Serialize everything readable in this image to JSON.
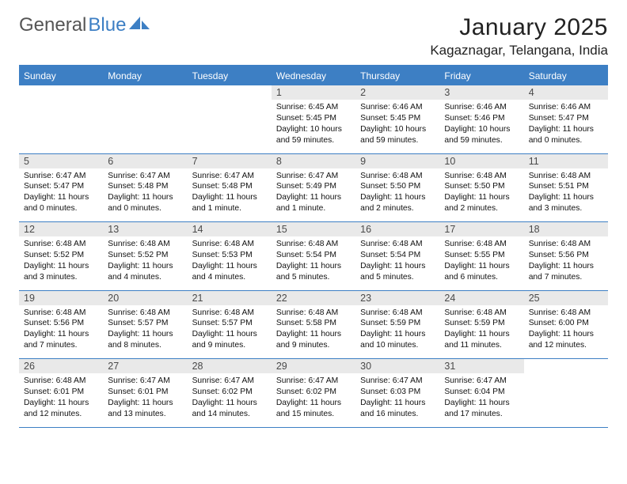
{
  "brand": {
    "part1": "General",
    "part2": "Blue"
  },
  "title": "January 2025",
  "location": "Kagaznagar, Telangana, India",
  "weekday_headers": [
    "Sunday",
    "Monday",
    "Tuesday",
    "Wednesday",
    "Thursday",
    "Friday",
    "Saturday"
  ],
  "header_bg": "#3d7fc4",
  "header_fg": "#ffffff",
  "daynum_bg": "#e9e9e9",
  "border_color": "#3d7fc4",
  "weeks": [
    {
      "days": [
        {
          "num": "",
          "lines": []
        },
        {
          "num": "",
          "lines": []
        },
        {
          "num": "",
          "lines": []
        },
        {
          "num": "1",
          "lines": [
            "Sunrise: 6:45 AM",
            "Sunset: 5:45 PM",
            "Daylight: 10 hours and 59 minutes."
          ]
        },
        {
          "num": "2",
          "lines": [
            "Sunrise: 6:46 AM",
            "Sunset: 5:45 PM",
            "Daylight: 10 hours and 59 minutes."
          ]
        },
        {
          "num": "3",
          "lines": [
            "Sunrise: 6:46 AM",
            "Sunset: 5:46 PM",
            "Daylight: 10 hours and 59 minutes."
          ]
        },
        {
          "num": "4",
          "lines": [
            "Sunrise: 6:46 AM",
            "Sunset: 5:47 PM",
            "Daylight: 11 hours and 0 minutes."
          ]
        }
      ]
    },
    {
      "days": [
        {
          "num": "5",
          "lines": [
            "Sunrise: 6:47 AM",
            "Sunset: 5:47 PM",
            "Daylight: 11 hours and 0 minutes."
          ]
        },
        {
          "num": "6",
          "lines": [
            "Sunrise: 6:47 AM",
            "Sunset: 5:48 PM",
            "Daylight: 11 hours and 0 minutes."
          ]
        },
        {
          "num": "7",
          "lines": [
            "Sunrise: 6:47 AM",
            "Sunset: 5:48 PM",
            "Daylight: 11 hours and 1 minute."
          ]
        },
        {
          "num": "8",
          "lines": [
            "Sunrise: 6:47 AM",
            "Sunset: 5:49 PM",
            "Daylight: 11 hours and 1 minute."
          ]
        },
        {
          "num": "9",
          "lines": [
            "Sunrise: 6:48 AM",
            "Sunset: 5:50 PM",
            "Daylight: 11 hours and 2 minutes."
          ]
        },
        {
          "num": "10",
          "lines": [
            "Sunrise: 6:48 AM",
            "Sunset: 5:50 PM",
            "Daylight: 11 hours and 2 minutes."
          ]
        },
        {
          "num": "11",
          "lines": [
            "Sunrise: 6:48 AM",
            "Sunset: 5:51 PM",
            "Daylight: 11 hours and 3 minutes."
          ]
        }
      ]
    },
    {
      "days": [
        {
          "num": "12",
          "lines": [
            "Sunrise: 6:48 AM",
            "Sunset: 5:52 PM",
            "Daylight: 11 hours and 3 minutes."
          ]
        },
        {
          "num": "13",
          "lines": [
            "Sunrise: 6:48 AM",
            "Sunset: 5:52 PM",
            "Daylight: 11 hours and 4 minutes."
          ]
        },
        {
          "num": "14",
          "lines": [
            "Sunrise: 6:48 AM",
            "Sunset: 5:53 PM",
            "Daylight: 11 hours and 4 minutes."
          ]
        },
        {
          "num": "15",
          "lines": [
            "Sunrise: 6:48 AM",
            "Sunset: 5:54 PM",
            "Daylight: 11 hours and 5 minutes."
          ]
        },
        {
          "num": "16",
          "lines": [
            "Sunrise: 6:48 AM",
            "Sunset: 5:54 PM",
            "Daylight: 11 hours and 5 minutes."
          ]
        },
        {
          "num": "17",
          "lines": [
            "Sunrise: 6:48 AM",
            "Sunset: 5:55 PM",
            "Daylight: 11 hours and 6 minutes."
          ]
        },
        {
          "num": "18",
          "lines": [
            "Sunrise: 6:48 AM",
            "Sunset: 5:56 PM",
            "Daylight: 11 hours and 7 minutes."
          ]
        }
      ]
    },
    {
      "days": [
        {
          "num": "19",
          "lines": [
            "Sunrise: 6:48 AM",
            "Sunset: 5:56 PM",
            "Daylight: 11 hours and 7 minutes."
          ]
        },
        {
          "num": "20",
          "lines": [
            "Sunrise: 6:48 AM",
            "Sunset: 5:57 PM",
            "Daylight: 11 hours and 8 minutes."
          ]
        },
        {
          "num": "21",
          "lines": [
            "Sunrise: 6:48 AM",
            "Sunset: 5:57 PM",
            "Daylight: 11 hours and 9 minutes."
          ]
        },
        {
          "num": "22",
          "lines": [
            "Sunrise: 6:48 AM",
            "Sunset: 5:58 PM",
            "Daylight: 11 hours and 9 minutes."
          ]
        },
        {
          "num": "23",
          "lines": [
            "Sunrise: 6:48 AM",
            "Sunset: 5:59 PM",
            "Daylight: 11 hours and 10 minutes."
          ]
        },
        {
          "num": "24",
          "lines": [
            "Sunrise: 6:48 AM",
            "Sunset: 5:59 PM",
            "Daylight: 11 hours and 11 minutes."
          ]
        },
        {
          "num": "25",
          "lines": [
            "Sunrise: 6:48 AM",
            "Sunset: 6:00 PM",
            "Daylight: 11 hours and 12 minutes."
          ]
        }
      ]
    },
    {
      "days": [
        {
          "num": "26",
          "lines": [
            "Sunrise: 6:48 AM",
            "Sunset: 6:01 PM",
            "Daylight: 11 hours and 12 minutes."
          ]
        },
        {
          "num": "27",
          "lines": [
            "Sunrise: 6:47 AM",
            "Sunset: 6:01 PM",
            "Daylight: 11 hours and 13 minutes."
          ]
        },
        {
          "num": "28",
          "lines": [
            "Sunrise: 6:47 AM",
            "Sunset: 6:02 PM",
            "Daylight: 11 hours and 14 minutes."
          ]
        },
        {
          "num": "29",
          "lines": [
            "Sunrise: 6:47 AM",
            "Sunset: 6:02 PM",
            "Daylight: 11 hours and 15 minutes."
          ]
        },
        {
          "num": "30",
          "lines": [
            "Sunrise: 6:47 AM",
            "Sunset: 6:03 PM",
            "Daylight: 11 hours and 16 minutes."
          ]
        },
        {
          "num": "31",
          "lines": [
            "Sunrise: 6:47 AM",
            "Sunset: 6:04 PM",
            "Daylight: 11 hours and 17 minutes."
          ]
        },
        {
          "num": "",
          "lines": []
        }
      ]
    }
  ]
}
